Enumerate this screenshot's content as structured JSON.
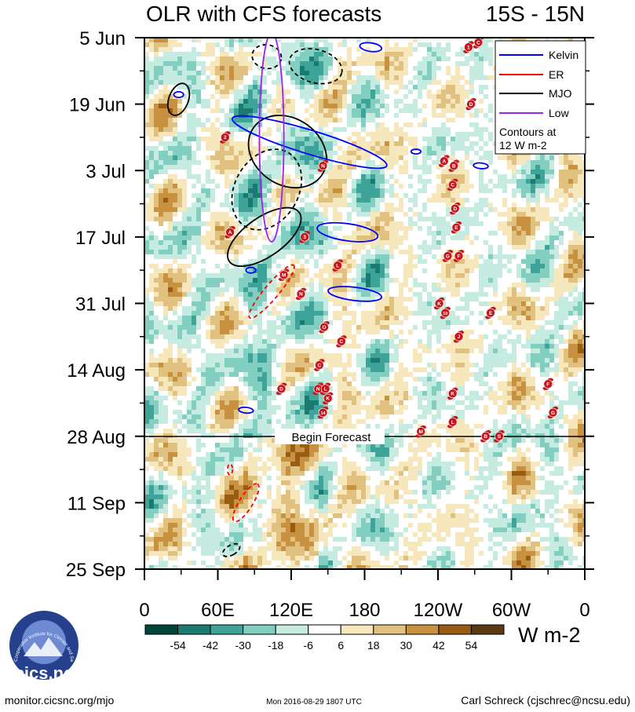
{
  "chart_data": {
    "type": "heatmap",
    "title_left": "OLR with CFS forecasts",
    "title_right": "15S - 15N",
    "x_ticks": [
      "0",
      "60E",
      "120E",
      "180",
      "120W",
      "60W",
      "0"
    ],
    "x_range": [
      0,
      360
    ],
    "y_ticks": [
      "5 Jun",
      "19 Jun",
      "3 Jul",
      "17 Jul",
      "31 Jul",
      "14 Aug",
      "28 Aug",
      "11 Sep",
      "25 Sep"
    ],
    "y_range_days": [
      0,
      112
    ],
    "forecast_label": "Begin Forecast",
    "forecast_start_day": 84,
    "legend": [
      {
        "name": "Kelvin",
        "color": "#0000ff"
      },
      {
        "name": "ER",
        "color": "#ff0000"
      },
      {
        "name": "MJO",
        "color": "#000000"
      },
      {
        "name": "Low",
        "color": "#a020f0"
      }
    ],
    "contour_note_line1": "Contours at",
    "contour_note_line2": "12 W m-2",
    "colorbar": {
      "colors": [
        "#00453a",
        "#1b7b71",
        "#3ea399",
        "#82cfc1",
        "#c6ebe0",
        "#ffffff",
        "#f6e7bd",
        "#e0c17f",
        "#c8913f",
        "#985d12",
        "#5a3a13"
      ],
      "labels": [
        "-54",
        "-42",
        "-30",
        "-18",
        "-6",
        "6",
        "18",
        "30",
        "42",
        "54"
      ],
      "units": "W m-2"
    },
    "storms": [
      {
        "label": "1",
        "lon": 265,
        "day": 2
      },
      {
        "label": "C",
        "lon": 273,
        "day": 1
      },
      {
        "label": "D",
        "lon": 267,
        "day": 14
      },
      {
        "label": "2",
        "lon": 66,
        "day": 21
      },
      {
        "label": "N",
        "lon": 146,
        "day": 27
      },
      {
        "label": "A",
        "lon": 245,
        "day": 26
      },
      {
        "label": "B",
        "lon": 253,
        "day": 27
      },
      {
        "label": "C",
        "lon": 252,
        "day": 31
      },
      {
        "label": "D",
        "lon": 254,
        "day": 36
      },
      {
        "label": "E",
        "lon": 255,
        "day": 40
      },
      {
        "label": "A",
        "lon": 70,
        "day": 41
      },
      {
        "label": "3",
        "lon": 131,
        "day": 42
      },
      {
        "label": "G",
        "lon": 248,
        "day": 46
      },
      {
        "label": "F",
        "lon": 257,
        "day": 46
      },
      {
        "label": "L",
        "lon": 158,
        "day": 48
      },
      {
        "label": "M",
        "lon": 114,
        "day": 50
      },
      {
        "label": "N",
        "lon": 128,
        "day": 54
      },
      {
        "label": "K",
        "lon": 241,
        "day": 56
      },
      {
        "label": "10",
        "lon": 246,
        "day": 58
      },
      {
        "label": "E",
        "lon": 283,
        "day": 58
      },
      {
        "label": "O",
        "lon": 147,
        "day": 61
      },
      {
        "label": "J",
        "lon": 257,
        "day": 63
      },
      {
        "label": "C",
        "lon": 161,
        "day": 64
      },
      {
        "label": "C",
        "lon": 143,
        "day": 69
      },
      {
        "label": "D",
        "lon": 112,
        "day": 74
      },
      {
        "label": "N",
        "lon": 142,
        "day": 74
      },
      {
        "label": "L",
        "lon": 148,
        "day": 74
      },
      {
        "label": "F",
        "lon": 330,
        "day": 73
      },
      {
        "label": "K",
        "lon": 252,
        "day": 75
      },
      {
        "label": "K",
        "lon": 150,
        "day": 76
      },
      {
        "label": "14",
        "lon": 146,
        "day": 79
      },
      {
        "label": "G",
        "lon": 334,
        "day": 79
      },
      {
        "label": "L",
        "lon": 252,
        "day": 81
      },
      {
        "label": "M",
        "lon": 226,
        "day": 83
      },
      {
        "label": "B",
        "lon": 279,
        "day": 84
      },
      {
        "label": "S",
        "lon": 290,
        "day": 84
      }
    ]
  },
  "footer": {
    "logo_text": "cics.nc",
    "logo_ring_text": "Cooperative Institute for Climate and Satellites",
    "website": "monitor.cicsnc.org/mjo",
    "timestamp": "Mon 2016-08-29 1807 UTC",
    "author": "Carl Schreck (cjschrec@ncsu.edu)"
  }
}
